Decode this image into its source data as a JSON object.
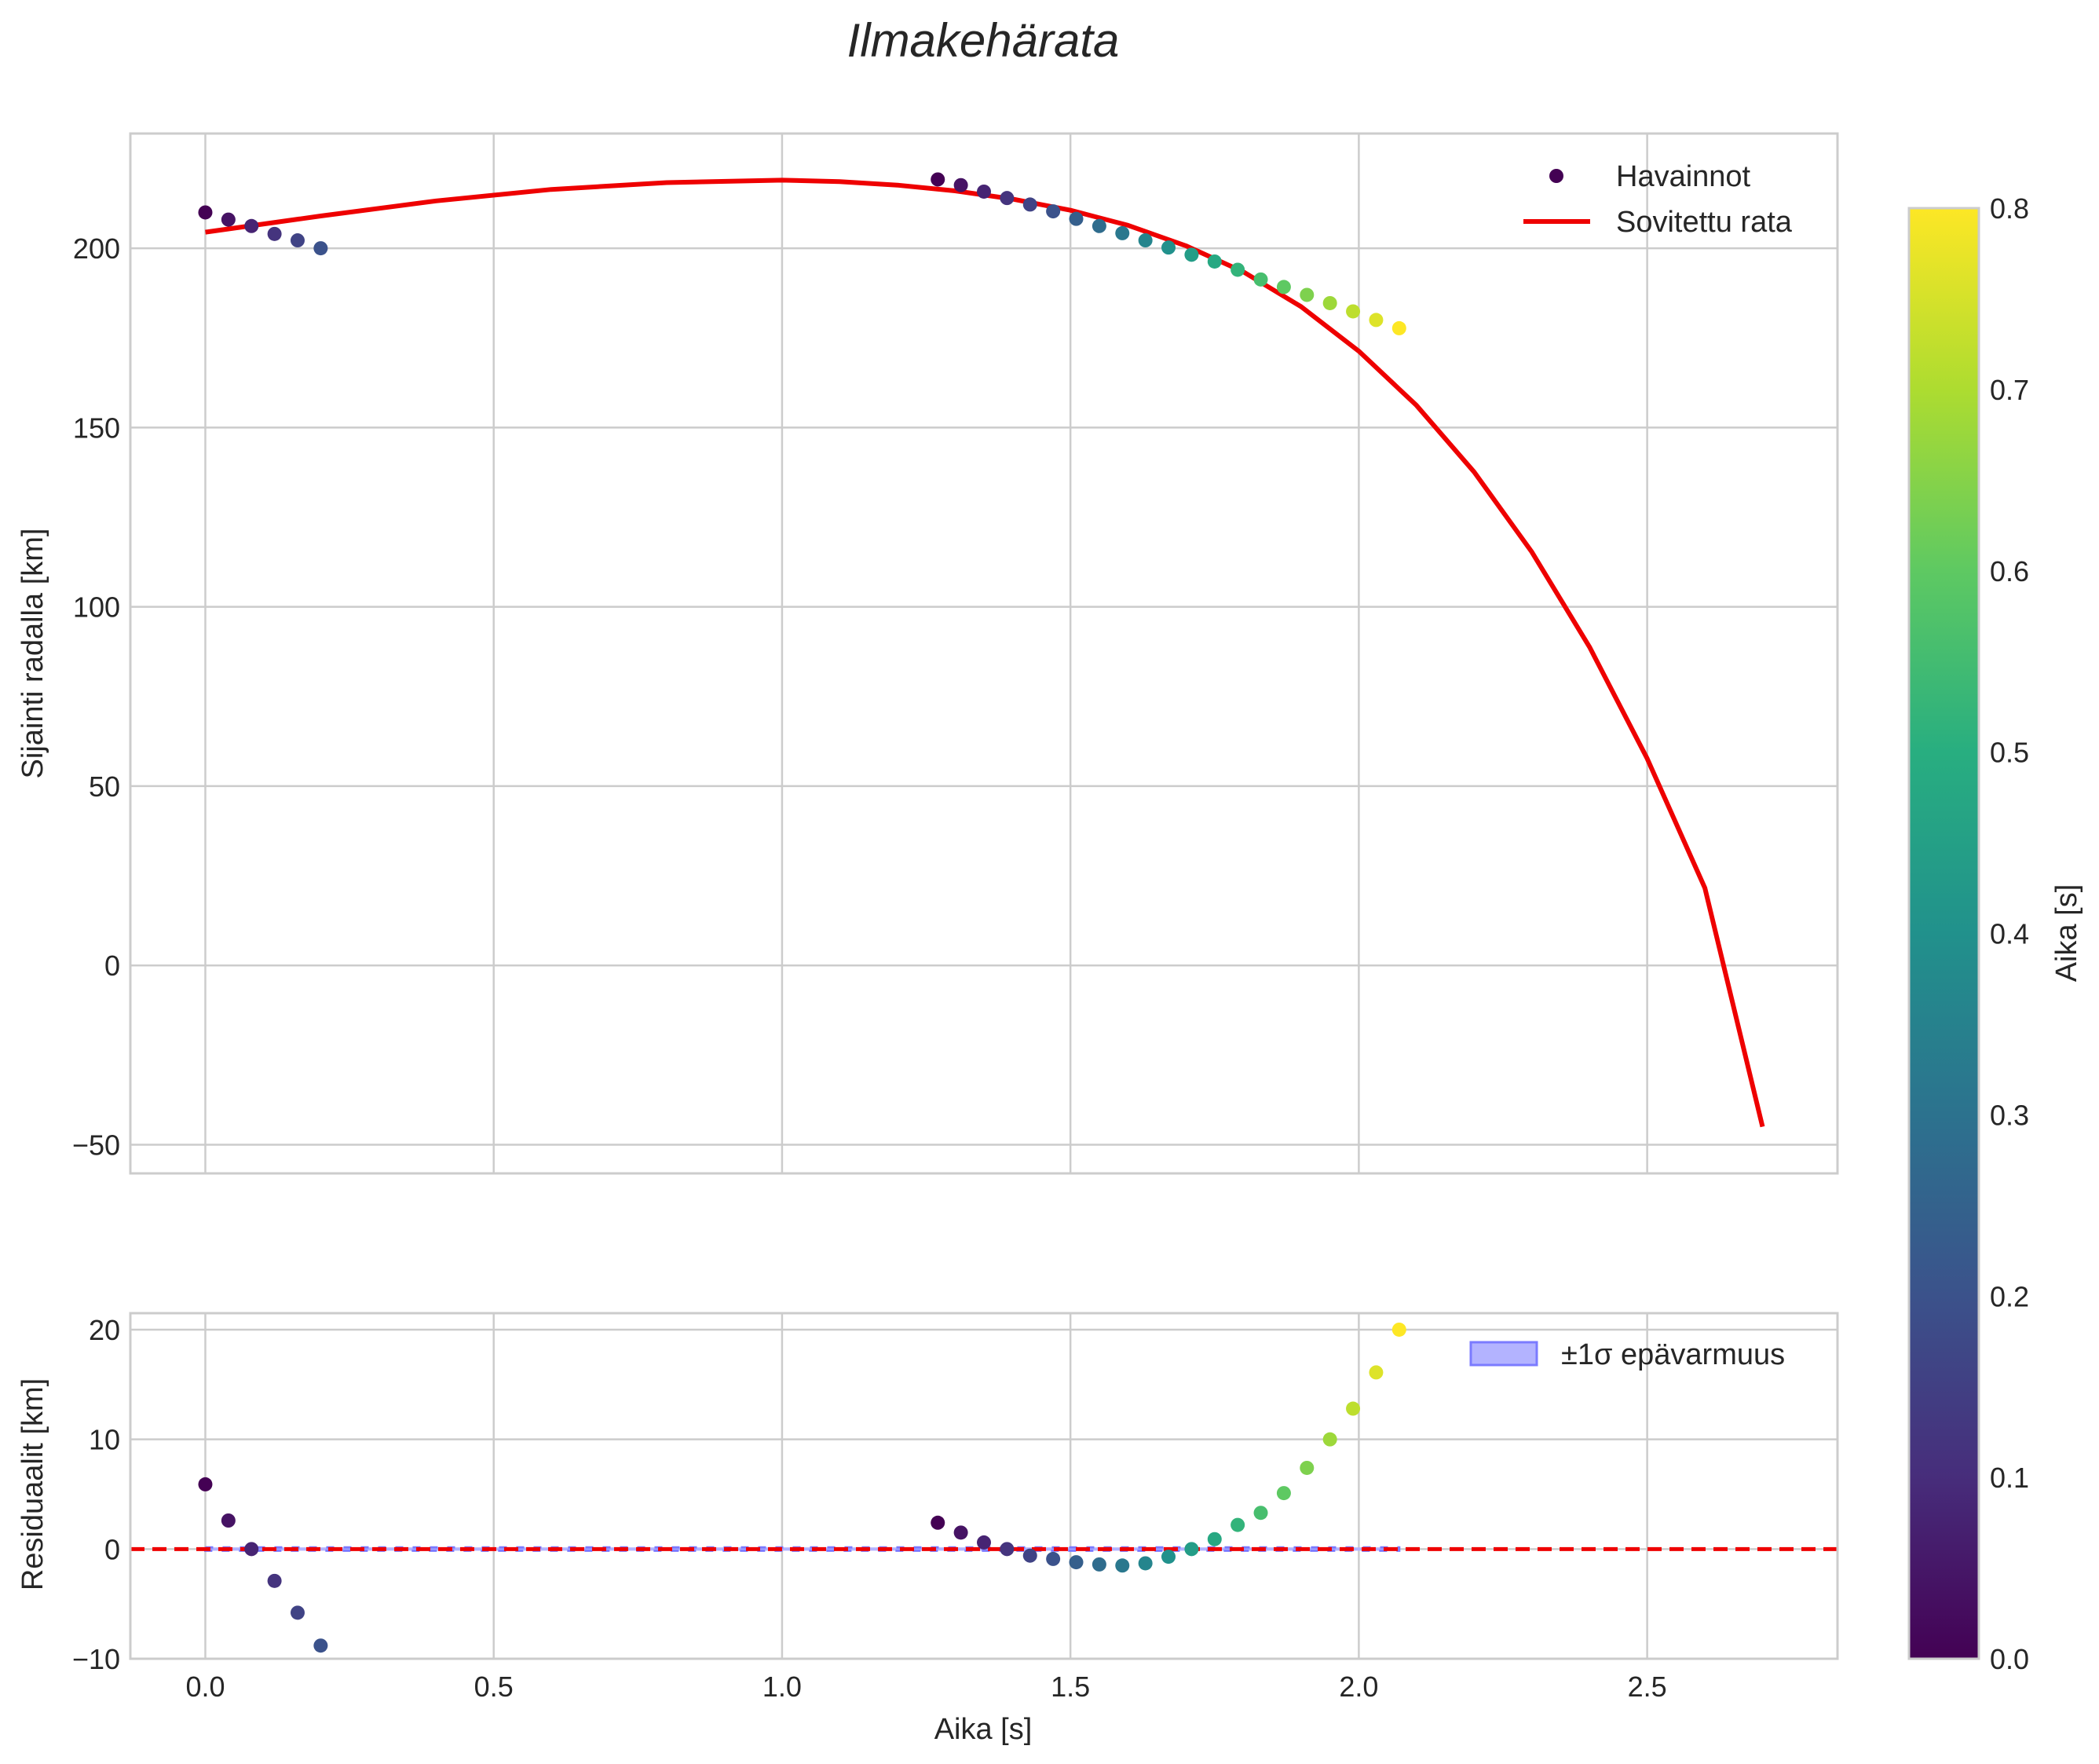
{
  "chart_data": {
    "title": "Ilmakehärata",
    "colorbar": {
      "label": "Aika [s]",
      "range": [
        0.0,
        0.8
      ],
      "ticks": [
        "0.0",
        "0.1",
        "0.2",
        "0.3",
        "0.4",
        "0.5",
        "0.6",
        "0.7",
        "0.8"
      ],
      "colormap": "viridis"
    },
    "panels": [
      {
        "type": "scatter+line",
        "ylabel": "Sijainti radalla [km]",
        "xlim": [
          -0.13,
          2.83
        ],
        "ylim": [
          -58,
          232
        ],
        "xticks": [
          0.0,
          0.5,
          1.0,
          1.5,
          2.0,
          2.5
        ],
        "yticks": [
          -50,
          0,
          50,
          100,
          150,
          200
        ],
        "ytick_labels": [
          "−50",
          "0",
          "50",
          "100",
          "150",
          "200"
        ],
        "legend": {
          "position": "top-right",
          "entries": [
            "Havainnot",
            "Sovitettu rata"
          ]
        },
        "series": [
          {
            "name": "Havainnot",
            "kind": "scatter",
            "colored_by": "Aika [s]",
            "x": [
              0.0,
              0.04,
              0.08,
              0.12,
              0.16,
              0.2,
              1.27,
              1.31,
              1.35,
              1.39,
              1.43,
              1.47,
              1.51,
              1.55,
              1.59,
              1.63,
              1.67,
              1.71,
              1.75,
              1.79,
              1.83,
              1.87,
              1.91,
              1.95,
              1.99,
              2.03,
              2.07
            ],
            "y": [
              210.0,
              208.0,
              206.2,
              204.0,
              202.2,
              200.0,
              219.2,
              217.6,
              215.8,
              214.0,
              212.2,
              210.3,
              208.2,
              206.2,
              204.2,
              202.2,
              200.2,
              198.2,
              196.3,
              194.0,
              191.3,
              189.2,
              187.0,
              184.7,
              182.4,
              180.0,
              177.7
            ],
            "c": [
              0.0,
              0.04,
              0.08,
              0.12,
              0.16,
              0.2,
              0.0,
              0.04,
              0.08,
              0.12,
              0.16,
              0.2,
              0.24,
              0.28,
              0.32,
              0.36,
              0.4,
              0.44,
              0.48,
              0.52,
              0.56,
              0.6,
              0.64,
              0.68,
              0.72,
              0.76,
              0.8
            ]
          },
          {
            "name": "Sovitettu rata",
            "kind": "line",
            "color": "#ee0000",
            "x": [
              0.0,
              0.2,
              0.4,
              0.6,
              0.8,
              1.0,
              1.1,
              1.2,
              1.3,
              1.4,
              1.5,
              1.6,
              1.7,
              1.8,
              1.9,
              2.0,
              2.1,
              2.2,
              2.3,
              2.4,
              2.5,
              2.6,
              2.7
            ],
            "y": [
              204.5,
              209.0,
              213.2,
              216.4,
              218.3,
              219.0,
              218.6,
              217.6,
              216.0,
              213.7,
              210.6,
              206.4,
              200.7,
              193.4,
              183.7,
              171.3,
              156.2,
              137.6,
              115.3,
              88.8,
              57.7,
              21.6,
              -45.0
            ]
          }
        ]
      },
      {
        "type": "scatter",
        "ylabel": "Residuaalit [km]",
        "xlabel": "Aika [s]",
        "xlim": [
          -0.13,
          2.83
        ],
        "ylim": [
          -10,
          21.5
        ],
        "xticks": [
          0.0,
          0.5,
          1.0,
          1.5,
          2.0,
          2.5
        ],
        "xtick_labels": [
          "0.0",
          "0.5",
          "1.0",
          "1.5",
          "2.0",
          "2.5"
        ],
        "yticks": [
          -10,
          0,
          10,
          20
        ],
        "ytick_labels": [
          "−10",
          "0",
          "10",
          "20"
        ],
        "legend": {
          "position": "top-right",
          "entries": [
            "±1σ epävarmuus"
          ]
        },
        "zero_line": {
          "y": 0,
          "style": "dashed",
          "color": "#ee0000"
        },
        "uncertainty_band": {
          "x_range": [
            0.0,
            2.07
          ],
          "half_width": 0.15,
          "color": "#7b7bff"
        },
        "series": [
          {
            "name": "Residuaalit",
            "kind": "scatter",
            "colored_by": "Aika [s]",
            "x": [
              0.0,
              0.04,
              0.08,
              0.12,
              0.16,
              0.2,
              1.27,
              1.31,
              1.35,
              1.39,
              1.43,
              1.47,
              1.51,
              1.55,
              1.59,
              1.63,
              1.67,
              1.71,
              1.75,
              1.79,
              1.83,
              1.87,
              1.91,
              1.95,
              1.99,
              2.03,
              2.07
            ],
            "y": [
              5.9,
              2.6,
              0.0,
              -2.9,
              -5.8,
              -8.8,
              2.4,
              1.5,
              0.6,
              0.0,
              -0.6,
              -0.9,
              -1.2,
              -1.4,
              -1.5,
              -1.3,
              -0.7,
              0.0,
              0.9,
              2.2,
              3.3,
              5.1,
              7.4,
              10.0,
              12.8,
              16.1,
              20.0
            ],
            "c": [
              0.0,
              0.04,
              0.08,
              0.12,
              0.16,
              0.2,
              0.0,
              0.04,
              0.08,
              0.12,
              0.16,
              0.2,
              0.24,
              0.28,
              0.32,
              0.36,
              0.4,
              0.44,
              0.48,
              0.52,
              0.56,
              0.6,
              0.64,
              0.68,
              0.72,
              0.76,
              0.8
            ]
          }
        ]
      }
    ]
  }
}
